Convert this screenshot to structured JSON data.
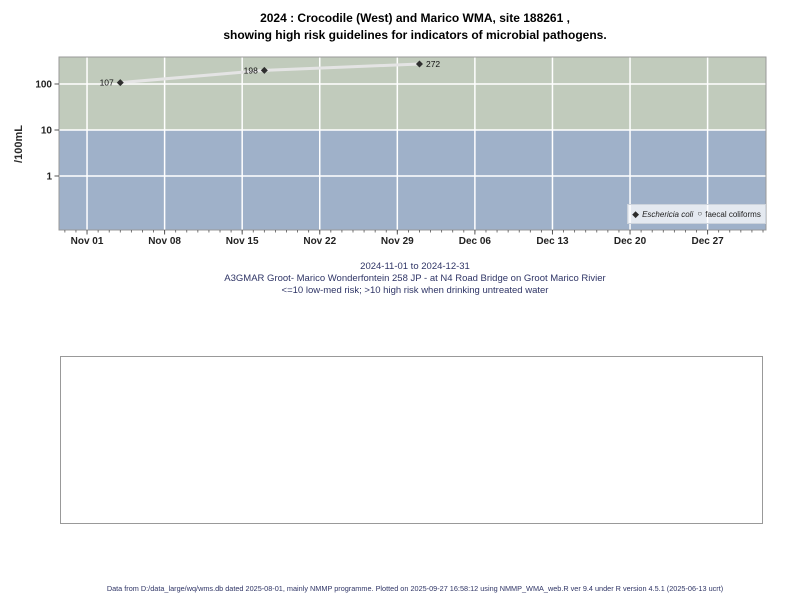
{
  "title": {
    "line1": "2024 : Crocodile (West) and Marico WMA, site 188261 ,",
    "line2": "showing high risk guidelines for indicators of microbial pathogens."
  },
  "chart_data": {
    "type": "line",
    "title": "2024 : Crocodile (West) and Marico WMA, site 188261, showing high risk guidelines for indicators of microbial pathogens.",
    "ylabel": "/100mL",
    "y_scale": "log",
    "ylim": [
      0.067,
      386
    ],
    "y_ticks": [
      100,
      10,
      1
    ],
    "xlim_days": [
      -2.53,
      61.27
    ],
    "x_ticks": [
      {
        "label": "Nov 01",
        "day": 0
      },
      {
        "label": "Nov 08",
        "day": 7
      },
      {
        "label": "Nov 15",
        "day": 14
      },
      {
        "label": "Nov 22",
        "day": 21
      },
      {
        "label": "Nov 29",
        "day": 28
      },
      {
        "label": "Dec 06",
        "day": 35
      },
      {
        "label": "Dec 13",
        "day": 42
      },
      {
        "label": "Dec 20",
        "day": 49
      },
      {
        "label": "Dec 27",
        "day": 56
      }
    ],
    "grid": true,
    "risk_threshold": 10,
    "bands": [
      {
        "name": "high-risk",
        "range": [
          10,
          386
        ],
        "color": "#c1cbbc"
      },
      {
        "name": "low-med-risk",
        "range": [
          0.067,
          10
        ],
        "color": "#9fb1c9"
      }
    ],
    "legend": {
      "position": "bottom-right"
    },
    "series": [
      {
        "name": "Eschericia coli",
        "marker": "filled-diamond",
        "line_color": "#e4e4e4",
        "marker_color": "#2f2f2f",
        "points": [
          {
            "date": "2024-11-04",
            "day": 3,
            "value": 107,
            "label": "107",
            "label_side": "left"
          },
          {
            "date": "2024-11-17",
            "day": 16,
            "value": 198,
            "label": "198",
            "label_side": "left"
          },
          {
            "date": "2024-12-01",
            "day": 30,
            "value": 272,
            "label": "272",
            "label_side": "right"
          }
        ]
      },
      {
        "name": "faecal coliforms",
        "marker": "open-circle",
        "points": []
      }
    ]
  },
  "captions": {
    "line1": "2024-11-01 to 2024-12-31",
    "line2": "A3GMAR Groot- Marico Wonderfontein 258 JP - at N4 Road Bridge on Groot Marico Rivier",
    "line3": "<=10 low-med risk; >10 high risk when drinking untreated water"
  },
  "footer": {
    "text": "Data from D:/data_large/wq/wms.db dated 2025-08-01, mainly NMMP programme. Plotted on 2025-09-27 16:58:12 using NMMP_WMA_web.R ver 9.4 under R version 4.5.1 (2025-06-13 ucrt)"
  },
  "colors": {
    "gridline": "#ffffff",
    "plot_border": "#999999",
    "tick": "#555555",
    "tick_label": "#222222",
    "point_label": "#111111",
    "navy_text": "#2f3566",
    "high_risk_band": "#c1cbbc",
    "low_risk_band": "#9fb1c9",
    "series_line": "#e4e4e4",
    "series_marker": "#2f2f2f"
  }
}
